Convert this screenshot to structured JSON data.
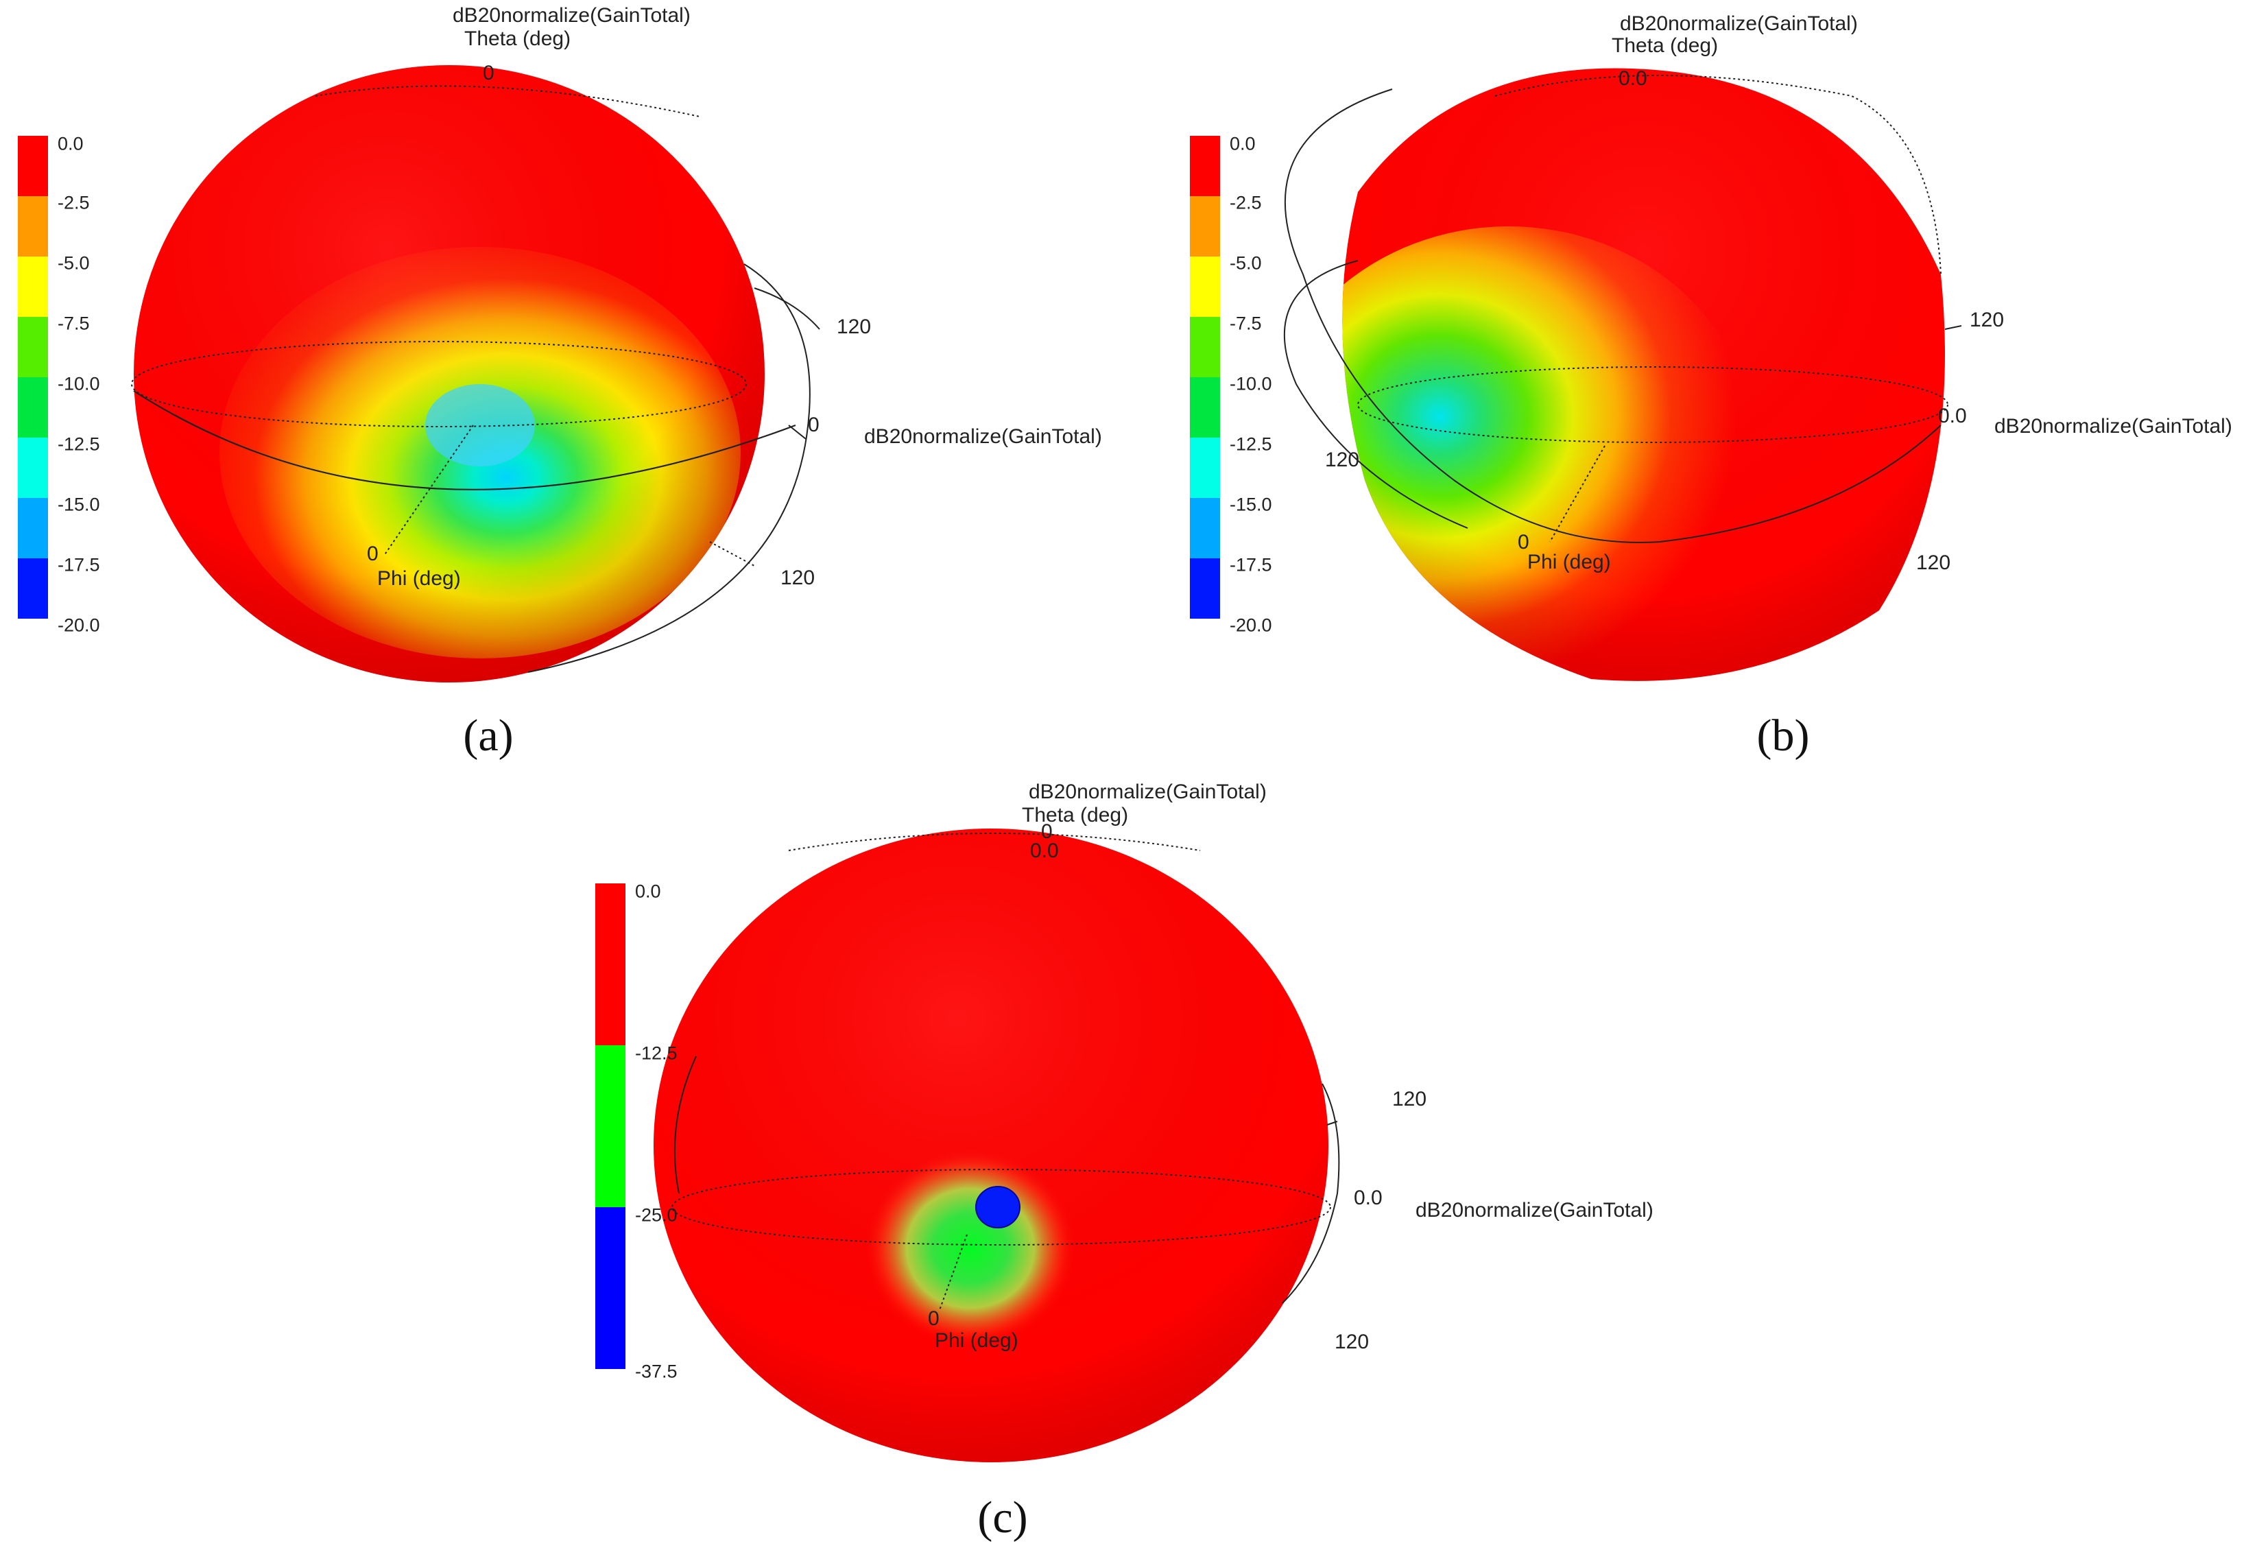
{
  "panels": [
    {
      "caption": "(a)",
      "title": "dB20normalize(GainTotal)",
      "theta_axis_label": "Theta (deg)",
      "theta_zero": "0",
      "right_axis_label": "dB20normalize(GainTotal)",
      "right_zero": "0",
      "tick_120_upper": "120",
      "tick_120_lower": "120",
      "phi_axis_label": "Phi (deg)",
      "phi_zero": "0",
      "colorbar": {
        "ticks": [
          "0.0",
          "-2.5",
          "-5.0",
          "-7.5",
          "-10.0",
          "-12.5",
          "-15.0",
          "-17.5",
          "-20.0"
        ],
        "colors": [
          "#ff0000",
          "#ff9a00",
          "#ffff00",
          "#55ee00",
          "#00e640",
          "#00ffe6",
          "#00a8ff",
          "#0018ff"
        ]
      }
    },
    {
      "caption": "(b)",
      "title": "dB20normalize(GainTotal)",
      "theta_axis_label": "Theta (deg)",
      "theta_zero": "0.0",
      "right_axis_label": "dB20normalize(GainTotal)",
      "right_zero": "0.0",
      "tick_120_upper": "120",
      "tick_120_lower": "120",
      "tick_120_left": "120",
      "phi_axis_label": "Phi (deg)",
      "phi_zero": "0",
      "colorbar": {
        "ticks": [
          "0.0",
          "-2.5",
          "-5.0",
          "-7.5",
          "-10.0",
          "-12.5",
          "-15.0",
          "-17.5",
          "-20.0"
        ],
        "colors": [
          "#ff0000",
          "#ff9a00",
          "#ffff00",
          "#55ee00",
          "#00e640",
          "#00ffe6",
          "#00a8ff",
          "#0018ff"
        ]
      }
    },
    {
      "caption": "(c)",
      "title": "dB20normalize(GainTotal)",
      "theta_axis_label": "Theta (deg)",
      "theta_zero": "0",
      "theta_zero_b": "0.0",
      "right_axis_label": "dB20normalize(GainTotal)",
      "right_zero": "0.0",
      "tick_120_upper": "120",
      "tick_120_lower": "120",
      "phi_axis_label": "Phi (deg)",
      "phi_zero": "0",
      "colorbar": {
        "ticks": [
          "0.0",
          "-12.5",
          "-25.0",
          "-37.5"
        ],
        "colors": [
          "#ff0000",
          "#00ff00",
          "#0000ff"
        ]
      }
    }
  ]
}
